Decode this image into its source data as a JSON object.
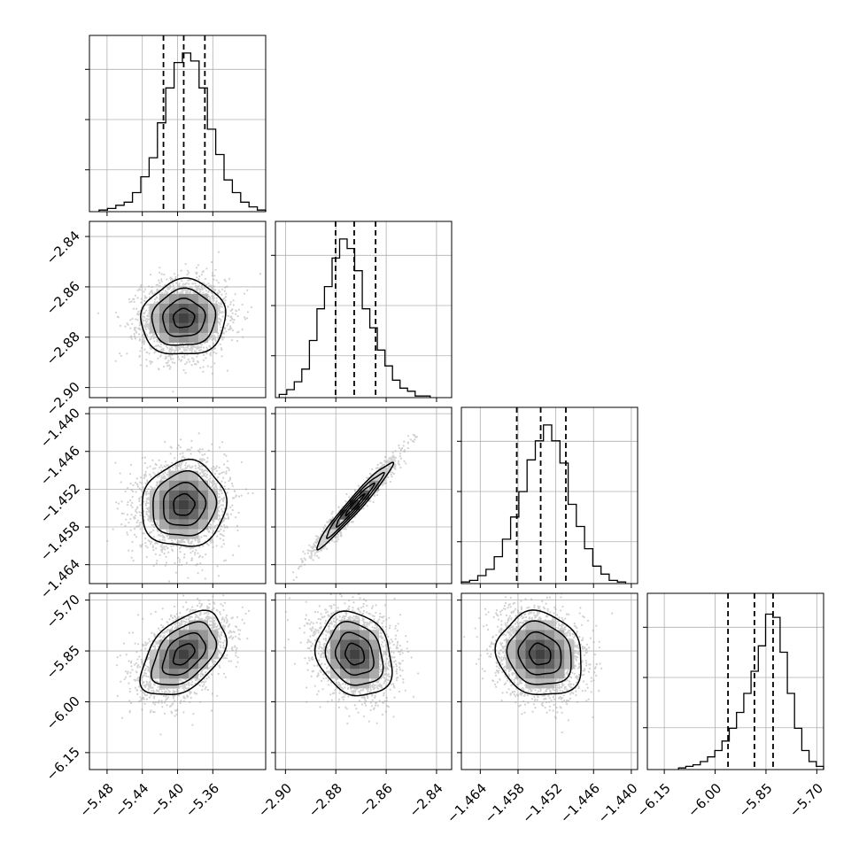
{
  "chart_data": {
    "type": "corner",
    "variables": [
      {
        "lim": [
          -5.5,
          -5.3
        ],
        "ticks": [
          -5.48,
          -5.44,
          -5.4,
          -5.36
        ],
        "tick_labels": [
          "−5.48",
          "−5.44",
          "−5.40",
          "−5.36"
        ],
        "center": -5.393,
        "sigma": 0.024,
        "quantiles": [
          -5.416,
          -5.393,
          -5.369
        ],
        "hist": [
          0.01,
          0.02,
          0.04,
          0.06,
          0.12,
          0.22,
          0.34,
          0.56,
          0.78,
          0.94,
          1.0,
          0.95,
          0.78,
          0.52,
          0.36,
          0.2,
          0.12,
          0.06,
          0.03,
          0.01
        ]
      },
      {
        "lim": [
          -2.904,
          -2.834
        ],
        "ticks": [
          -2.9,
          -2.88,
          -2.86,
          -2.84
        ],
        "tick_labels": [
          "−2.90",
          "−2.88",
          "−2.86",
          "−2.84"
        ],
        "center": -2.8725,
        "sigma": 0.0075,
        "quantiles": [
          -2.8801,
          -2.8727,
          -2.8642
        ],
        "hist": [
          0.02,
          0.05,
          0.1,
          0.18,
          0.36,
          0.56,
          0.7,
          0.88,
          1.0,
          0.94,
          0.8,
          0.56,
          0.44,
          0.3,
          0.2,
          0.11,
          0.06,
          0.04,
          0.01,
          0.01
        ]
      },
      {
        "lim": [
          -1.467,
          -1.439
        ],
        "ticks": [
          -1.464,
          -1.458,
          -1.452,
          -1.446,
          -1.44
        ],
        "tick_labels": [
          "−1.464",
          "−1.458",
          "−1.452",
          "−1.446",
          "−1.440"
        ],
        "center": -1.4545,
        "sigma": 0.0034,
        "quantiles": [
          -1.4582,
          -1.4544,
          -1.4504
        ],
        "hist": [
          0.01,
          0.02,
          0.05,
          0.09,
          0.17,
          0.28,
          0.42,
          0.58,
          0.78,
          0.9,
          1.0,
          0.9,
          0.76,
          0.5,
          0.36,
          0.22,
          0.11,
          0.06,
          0.02,
          0.01
        ]
      },
      {
        "lim": [
          -6.2,
          -5.68
        ],
        "ticks": [
          -6.15,
          -6.0,
          -5.85,
          -5.7
        ],
        "tick_labels": [
          "−6.15",
          "−6.00",
          "−5.85",
          "−5.70"
        ],
        "center": -5.86,
        "sigma": 0.062,
        "quantiles": [
          -5.962,
          -5.884,
          -5.829
        ],
        "hist": [
          0.01,
          0.02,
          0.03,
          0.05,
          0.08,
          0.12,
          0.18,
          0.26,
          0.36,
          0.48,
          0.62,
          0.78,
          0.98,
          0.96,
          0.74,
          0.48,
          0.26,
          0.12,
          0.05,
          0.02
        ]
      }
    ],
    "pairs": [
      {
        "row": 1,
        "col": 0,
        "rho": 0.05
      },
      {
        "row": 2,
        "col": 0,
        "rho": 0.06
      },
      {
        "row": 2,
        "col": 1,
        "rho": 0.97
      },
      {
        "row": 3,
        "col": 0,
        "rho": 0.45
      },
      {
        "row": 3,
        "col": 1,
        "rho": -0.18
      },
      {
        "row": 3,
        "col": 2,
        "rho": -0.12
      }
    ],
    "contour_levels_sigma": [
      0.5,
      1.0,
      1.5,
      2.0
    ],
    "grid": true,
    "xlabel": "",
    "ylabel": "",
    "title": "",
    "colors": {
      "line": "#000000",
      "points": "#9a9a9a",
      "grid": "#b0b0b0",
      "hist_fill": "#000000"
    }
  }
}
